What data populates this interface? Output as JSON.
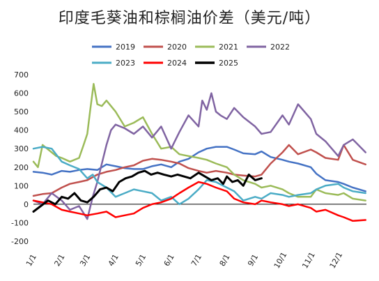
{
  "chart_data": {
    "type": "line",
    "title": "印度毛葵油和棕榈油价差（美元/吨）",
    "xlabel": "",
    "ylabel": "",
    "ylim": [
      -200,
      700
    ],
    "y_ticks": [
      700,
      600,
      500,
      400,
      300,
      200,
      100,
      0,
      -100,
      -200
    ],
    "x_ticks": [
      "1/1",
      "2/1",
      "3/1",
      "4/1",
      "5/1",
      "6/1",
      "7/1",
      "8/1",
      "9/1",
      "10/1",
      "11/1",
      "12/1"
    ],
    "x_domain_days": [
      0,
      365
    ],
    "grid": false,
    "legend": "top",
    "series": [
      {
        "name": "2019",
        "color": "#4472c4",
        "x": [
          0,
          10,
          20,
          31,
          40,
          50,
          59,
          70,
          80,
          90,
          100,
          110,
          120,
          130,
          140,
          151,
          160,
          170,
          181,
          190,
          200,
          212,
          220,
          230,
          243,
          250,
          260,
          273,
          280,
          290,
          304,
          310,
          320,
          334,
          340,
          350,
          364
        ],
        "values": [
          175,
          170,
          160,
          180,
          175,
          185,
          190,
          185,
          215,
          205,
          195,
          190,
          190,
          205,
          215,
          200,
          230,
          245,
          280,
          300,
          310,
          310,
          295,
          275,
          270,
          285,
          255,
          240,
          230,
          220,
          200,
          165,
          130,
          120,
          110,
          90,
          70
        ]
      },
      {
        "name": "2020",
        "color": "#c0504d",
        "x": [
          0,
          10,
          20,
          31,
          40,
          50,
          59,
          70,
          80,
          90,
          100,
          110,
          120,
          130,
          140,
          151,
          160,
          170,
          181,
          190,
          200,
          212,
          220,
          230,
          243,
          250,
          260,
          273,
          280,
          290,
          304,
          310,
          320,
          334,
          340,
          350,
          364
        ],
        "values": [
          45,
          55,
          60,
          90,
          110,
          120,
          130,
          160,
          175,
          185,
          200,
          210,
          235,
          245,
          240,
          230,
          220,
          195,
          180,
          170,
          180,
          170,
          160,
          155,
          150,
          160,
          220,
          280,
          320,
          270,
          295,
          280,
          250,
          240,
          320,
          240,
          215
        ]
      },
      {
        "name": "2021",
        "color": "#9bbb59",
        "x": [
          0,
          5,
          10,
          15,
          20,
          25,
          31,
          40,
          50,
          55,
          59,
          62,
          66,
          70,
          75,
          80,
          90,
          100,
          110,
          120,
          130,
          140,
          151,
          160,
          170,
          181,
          190,
          200,
          212,
          220,
          230,
          243,
          250,
          260,
          273,
          280,
          290,
          304,
          310,
          320,
          334,
          340,
          350,
          364
        ],
        "values": [
          230,
          200,
          320,
          300,
          280,
          260,
          250,
          230,
          250,
          320,
          380,
          500,
          650,
          540,
          530,
          560,
          500,
          420,
          440,
          470,
          380,
          300,
          310,
          270,
          260,
          250,
          240,
          220,
          200,
          160,
          130,
          110,
          90,
          100,
          80,
          60,
          40,
          40,
          80,
          60,
          50,
          60,
          30,
          20
        ]
      },
      {
        "name": "2022",
        "color": "#8064a2",
        "x": [
          0,
          10,
          20,
          31,
          40,
          50,
          59,
          65,
          70,
          75,
          80,
          85,
          90,
          100,
          110,
          120,
          130,
          140,
          151,
          160,
          170,
          181,
          185,
          190,
          195,
          200,
          205,
          212,
          220,
          230,
          243,
          250,
          260,
          273,
          280,
          290,
          304,
          310,
          320,
          334,
          340,
          350,
          364
        ],
        "values": [
          20,
          0,
          60,
          20,
          -30,
          -10,
          -80,
          40,
          120,
          220,
          320,
          400,
          430,
          410,
          380,
          420,
          360,
          420,
          300,
          390,
          480,
          420,
          560,
          510,
          600,
          500,
          480,
          460,
          520,
          470,
          420,
          380,
          390,
          480,
          430,
          540,
          460,
          380,
          340,
          260,
          320,
          350,
          280
        ]
      },
      {
        "name": "2023",
        "color": "#4bacc6",
        "x": [
          0,
          10,
          20,
          31,
          40,
          50,
          59,
          65,
          70,
          80,
          90,
          100,
          110,
          120,
          130,
          140,
          151,
          160,
          170,
          181,
          190,
          200,
          212,
          220,
          230,
          243,
          250,
          260,
          273,
          280,
          290,
          304,
          310,
          320,
          334,
          340,
          350,
          364
        ],
        "values": [
          300,
          310,
          300,
          230,
          210,
          190,
          140,
          160,
          120,
          90,
          40,
          60,
          80,
          70,
          60,
          20,
          40,
          0,
          30,
          80,
          130,
          120,
          90,
          70,
          20,
          40,
          30,
          60,
          50,
          40,
          50,
          60,
          80,
          100,
          110,
          90,
          70,
          60
        ]
      },
      {
        "name": "2024",
        "color": "#ff0000",
        "x": [
          0,
          10,
          20,
          31,
          40,
          50,
          59,
          70,
          80,
          90,
          100,
          110,
          120,
          130,
          140,
          151,
          160,
          170,
          181,
          190,
          200,
          212,
          220,
          230,
          243,
          250,
          260,
          273,
          280,
          290,
          304,
          310,
          320,
          334,
          340,
          350,
          364
        ],
        "values": [
          20,
          10,
          0,
          -30,
          -40,
          -50,
          -60,
          -50,
          -40,
          -70,
          -60,
          -50,
          -20,
          0,
          10,
          30,
          60,
          90,
          120,
          110,
          90,
          70,
          30,
          10,
          0,
          20,
          10,
          0,
          -10,
          0,
          -20,
          -40,
          -30,
          -60,
          -70,
          -90,
          -85
        ]
      },
      {
        "name": "2025",
        "color": "#000000",
        "x": [
          0,
          8,
          16,
          24,
          31,
          38,
          45,
          52,
          59,
          66,
          73,
          80,
          87,
          94,
          101,
          108,
          115,
          122,
          129,
          136,
          143,
          151,
          158,
          165,
          172,
          181,
          188,
          195,
          202,
          208,
          212,
          218,
          224,
          230,
          236,
          243,
          250
        ],
        "values": [
          -40,
          -10,
          20,
          0,
          40,
          30,
          60,
          20,
          10,
          40,
          80,
          90,
          70,
          120,
          140,
          150,
          170,
          180,
          160,
          170,
          160,
          150,
          160,
          150,
          140,
          170,
          150,
          130,
          140,
          110,
          150,
          120,
          130,
          100,
          160,
          130,
          140
        ]
      }
    ]
  }
}
